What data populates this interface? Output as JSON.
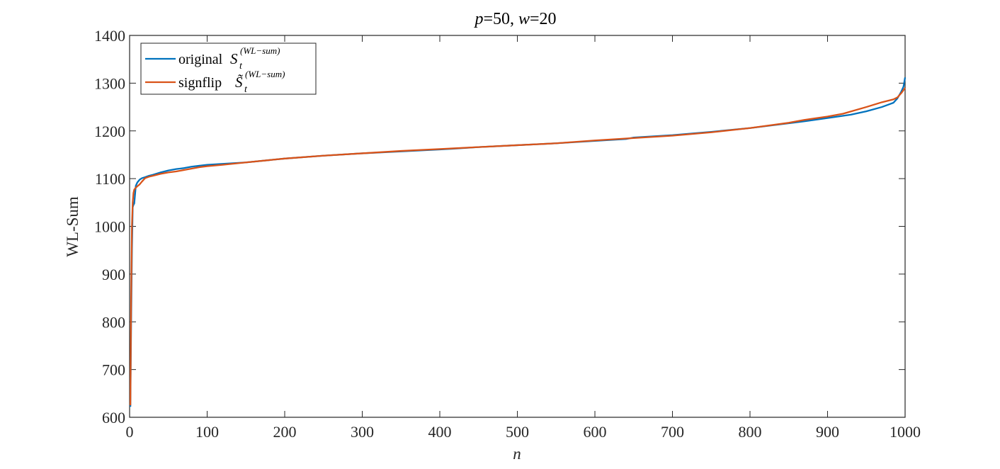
{
  "chart_data": {
    "type": "line",
    "title": "p=50, w=20",
    "title_parts": {
      "p_sym": "p",
      "p_val": "=50, ",
      "w_sym": "w",
      "w_val": "=20"
    },
    "xlabel": "n",
    "ylabel": "WL-Sum",
    "xlim": [
      0,
      1000
    ],
    "ylim": [
      600,
      1400
    ],
    "xticks": [
      0,
      100,
      200,
      300,
      400,
      500,
      600,
      700,
      800,
      900,
      1000
    ],
    "yticks": [
      600,
      700,
      800,
      900,
      1000,
      1100,
      1200,
      1300,
      1400
    ],
    "grid": false,
    "legend_location": "top-left",
    "legend": [
      {
        "text": "original",
        "symbol": "S",
        "subscript": "t",
        "superscript": "(WL−sum)"
      },
      {
        "text": "signflip",
        "symbol": "S̃",
        "subscript": "t",
        "superscript": "(WL−sum)"
      }
    ],
    "series": [
      {
        "name": "original S_t^(WL-sum)",
        "color": "#0072BD",
        "x": [
          1,
          2,
          3,
          4,
          5,
          6,
          8,
          10,
          13,
          16,
          20,
          25,
          30,
          40,
          50,
          60,
          70,
          80,
          90,
          100,
          120,
          150,
          200,
          250,
          300,
          350,
          400,
          450,
          500,
          550,
          600,
          640,
          650,
          700,
          750,
          800,
          850,
          870,
          900,
          930,
          950,
          970,
          980,
          985,
          990,
          995,
          998,
          1000
        ],
        "y": [
          622,
          800,
          950,
          1040,
          1045,
          1048,
          1085,
          1092,
          1098,
          1101,
          1103,
          1106,
          1108,
          1113,
          1117,
          1120,
          1122,
          1125,
          1127,
          1129,
          1131,
          1134,
          1142,
          1148,
          1153,
          1157,
          1161,
          1166,
          1170,
          1174,
          1179,
          1183,
          1186,
          1191,
          1198,
          1206,
          1216,
          1220,
          1227,
          1234,
          1241,
          1250,
          1256,
          1259,
          1268,
          1282,
          1293,
          1312
        ]
      },
      {
        "name": "signflip S~_t^(WL-sum)",
        "color": "#D95319",
        "x": [
          1,
          2,
          3,
          4,
          5,
          6,
          8,
          10,
          13,
          16,
          20,
          25,
          30,
          40,
          50,
          60,
          70,
          80,
          90,
          100,
          120,
          150,
          200,
          250,
          300,
          350,
          400,
          450,
          500,
          550,
          600,
          650,
          700,
          750,
          800,
          850,
          870,
          900,
          920,
          950,
          970,
          985,
          990,
          995,
          1000
        ],
        "y": [
          625,
          850,
          1000,
          1050,
          1070,
          1077,
          1081,
          1084,
          1088,
          1094,
          1101,
          1104,
          1106,
          1110,
          1113,
          1115,
          1118,
          1121,
          1124,
          1126,
          1129,
          1134,
          1142,
          1148,
          1153,
          1158,
          1162,
          1166,
          1170,
          1174,
          1180,
          1185,
          1190,
          1197,
          1206,
          1217,
          1223,
          1230,
          1236,
          1250,
          1260,
          1266,
          1270,
          1279,
          1290
        ]
      }
    ]
  }
}
